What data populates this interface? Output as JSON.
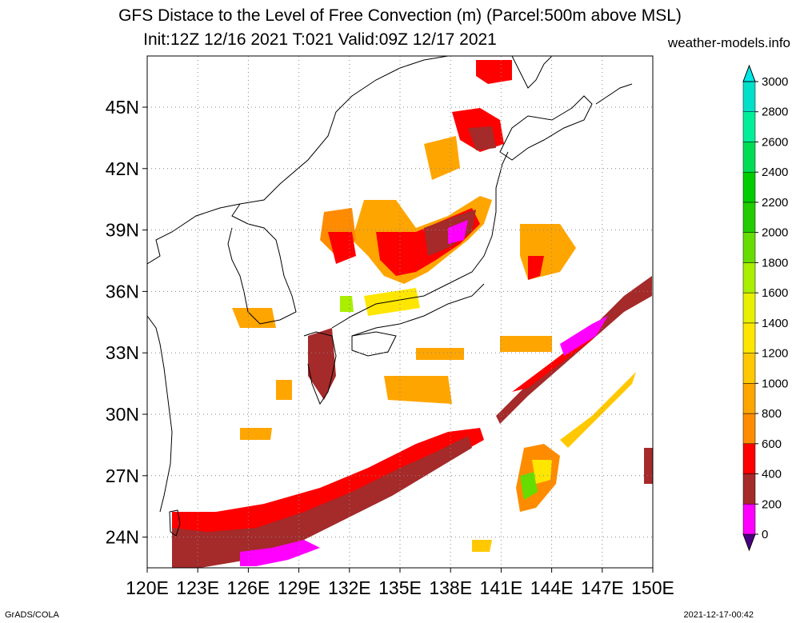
{
  "title": {
    "line1": "GFS Distace to the Level of Free Convection (m) (Parcel:500m above MSL)",
    "line2": "Init:12Z 12/16 2021 T:021 Valid:09Z 12/17 2021"
  },
  "site": "weather-models.info",
  "footer": {
    "left": "GrADS/COLA",
    "right": "2021-12-17-00:42"
  },
  "map": {
    "lon_range": [
      120,
      150
    ],
    "lat_range": [
      22.5,
      47.5
    ],
    "lon_ticks": [
      "120E",
      "123E",
      "126E",
      "129E",
      "132E",
      "135E",
      "138E",
      "141E",
      "144E",
      "147E",
      "150E"
    ],
    "lat_ticks": [
      "24N",
      "27N",
      "30N",
      "33N",
      "36N",
      "39N",
      "42N",
      "45N"
    ],
    "grid": "dotted"
  },
  "colorbar": {
    "levels": [
      "0",
      "200",
      "400",
      "600",
      "800",
      "1000",
      "1200",
      "1400",
      "1600",
      "1800",
      "2000",
      "2200",
      "2400",
      "2600",
      "2800",
      "3000"
    ],
    "colors": [
      "#4b0082",
      "#ff00ff",
      "#a52a2a",
      "#ff0000",
      "#ff8c00",
      "#ffa500",
      "#ffc800",
      "#ffe600",
      "#e6f000",
      "#aaee00",
      "#66dd00",
      "#22cc00",
      "#00cc00",
      "#00dd55",
      "#00ee99",
      "#00e0c8",
      "#00e8e8"
    ]
  }
}
